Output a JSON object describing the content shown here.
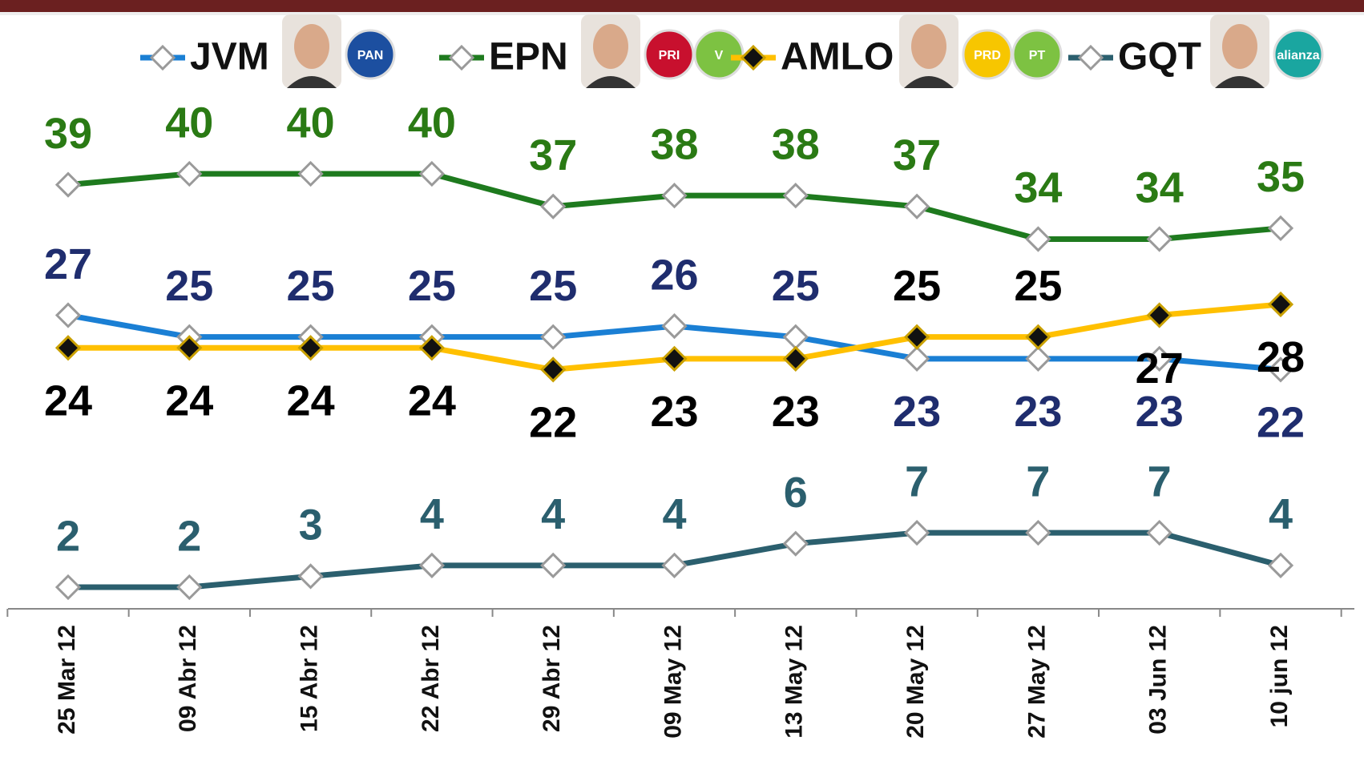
{
  "chart_data": {
    "type": "line",
    "categories": [
      "25 Mar 12",
      "09 Abr 12",
      "15 Abr 12",
      "22 Abr 12",
      "29 Abr 12",
      "09 May 12",
      "13 May 12",
      "20 May 12",
      "27 May 12",
      "03 Jun 12",
      "10 jun 12"
    ],
    "series": [
      {
        "name": "JVM",
        "color": "#1a7fd4",
        "label_color": "#1f2d6e",
        "marker_color": "#ffffff",
        "logos": [
          "PAN"
        ],
        "values": [
          27,
          25,
          25,
          25,
          25,
          26,
          25,
          23,
          23,
          23,
          22
        ]
      },
      {
        "name": "EPN",
        "color": "#1e7a1e",
        "label_color": "#2a7a14",
        "marker_color": "#ffffff",
        "logos": [
          "PRI",
          "V"
        ],
        "values": [
          39,
          40,
          40,
          40,
          37,
          38,
          38,
          37,
          34,
          34,
          35
        ]
      },
      {
        "name": "AMLO",
        "color": "#ffc000",
        "label_color": "#000000",
        "marker_color": "#111111",
        "logos": [
          "PRD",
          "PT"
        ],
        "values": [
          24,
          24,
          24,
          24,
          22,
          23,
          23,
          25,
          25,
          27,
          28
        ]
      },
      {
        "name": "GQT",
        "color": "#2b5f6e",
        "label_color": "#2b5f6e",
        "marker_color": "#ffffff",
        "logos": [
          "alianza"
        ],
        "values": [
          2,
          2,
          3,
          4,
          4,
          4,
          6,
          7,
          7,
          7,
          4
        ]
      }
    ]
  }
}
